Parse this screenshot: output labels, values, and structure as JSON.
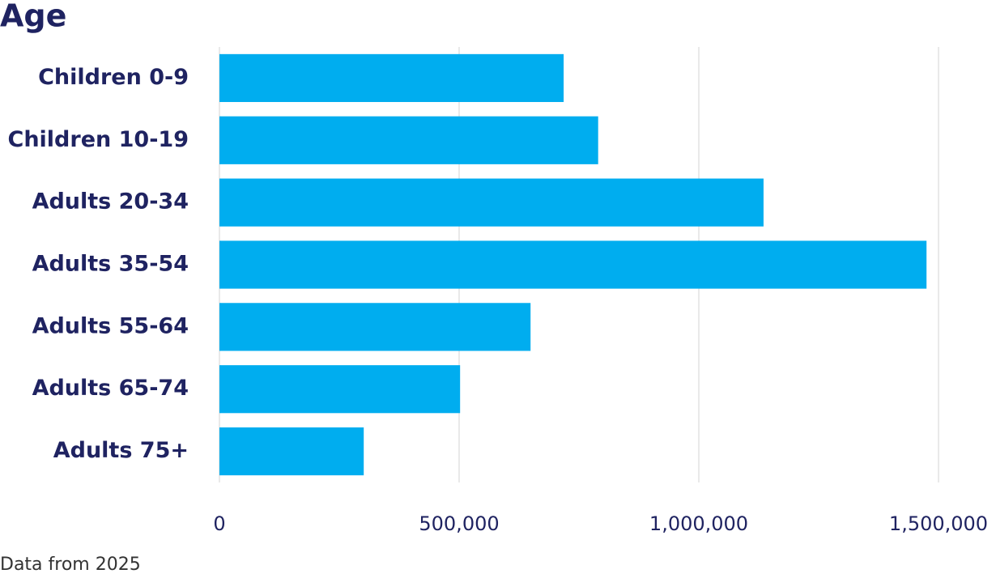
{
  "chart_data": {
    "type": "bar",
    "orientation": "horizontal",
    "title": "Age",
    "note": "Data from 2025",
    "categories": [
      "Children 0-9",
      "Children 10-19",
      "Adults 20-34",
      "Adults 35-54",
      "Adults 55-64",
      "Adults 65-74",
      "Adults 75+"
    ],
    "values": [
      718000,
      790000,
      1135000,
      1475000,
      649000,
      502000,
      301000
    ],
    "color": "#00adef",
    "xlim": [
      0,
      1500000
    ],
    "xticks": [
      0,
      {
        "value": 500000,
        "label": "500,000"
      },
      {
        "value": 1000000,
        "label": "1,000,000"
      },
      {
        "value": 1500000,
        "label": "1,500,000"
      }
    ],
    "grid": true
  }
}
